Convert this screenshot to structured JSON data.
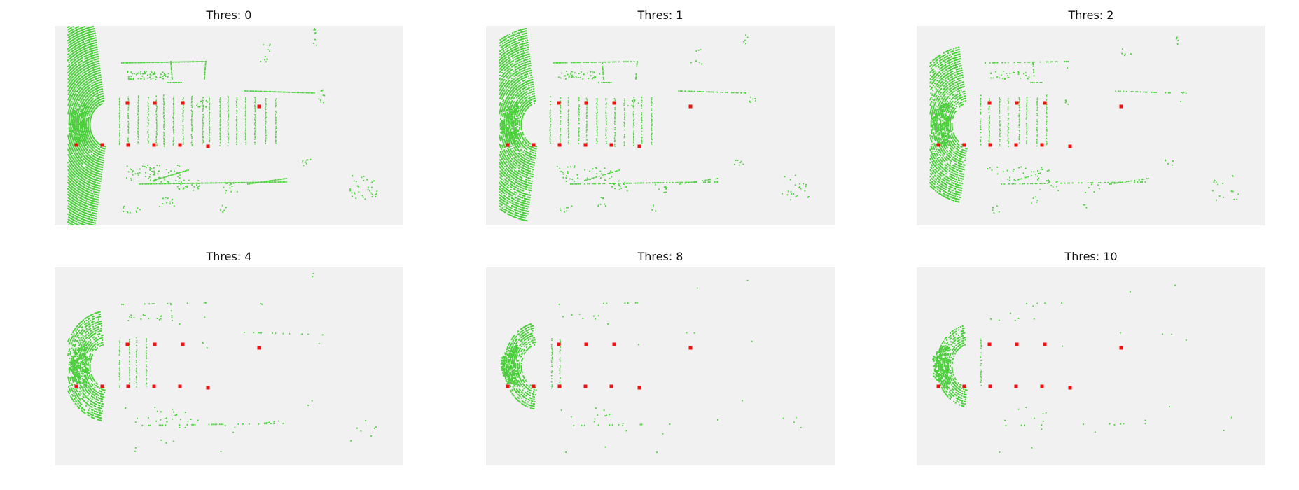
{
  "colors": {
    "background": "#f1f1f1",
    "lidar_points": "#4ccf3c",
    "keypoints": "#ee1111"
  },
  "chart_data": [
    {
      "type": "scatter",
      "title": "Thres: 0",
      "threshold": 0,
      "grid": false
    },
    {
      "type": "scatter",
      "title": "Thres: 1",
      "threshold": 1,
      "grid": false
    },
    {
      "type": "scatter",
      "title": "Thres: 2",
      "threshold": 2,
      "grid": false
    },
    {
      "type": "scatter",
      "title": "Thres: 4",
      "threshold": 4,
      "grid": false
    },
    {
      "type": "scatter",
      "title": "Thres: 8",
      "threshold": 8,
      "grid": false
    },
    {
      "type": "scatter",
      "title": "Thres: 10",
      "threshold": 10,
      "grid": false
    }
  ]
}
